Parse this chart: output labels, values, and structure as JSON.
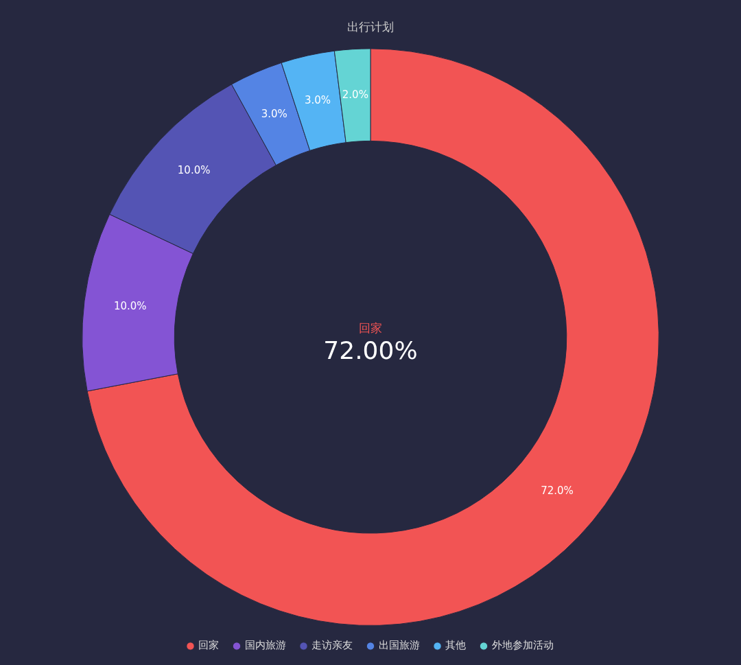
{
  "chart_data": {
    "type": "donut",
    "title": "出行计划",
    "categories": [
      "回家",
      "国内旅游",
      "走访亲友",
      "出国旅游",
      "其他",
      "外地参加活动"
    ],
    "values": [
      72,
      10,
      10,
      3,
      3,
      2
    ],
    "colors": [
      "#f25454",
      "#8454d4",
      "#5454b4",
      "#5484e4",
      "#54b4f4",
      "#64d4d4"
    ],
    "value_labels": [
      "72.0%",
      "10.0%",
      "10.0%",
      "3.0%",
      "3.0%",
      "2.0%"
    ],
    "annotations": [
      "回家",
      "72.00%"
    ],
    "legend": "bottom"
  }
}
